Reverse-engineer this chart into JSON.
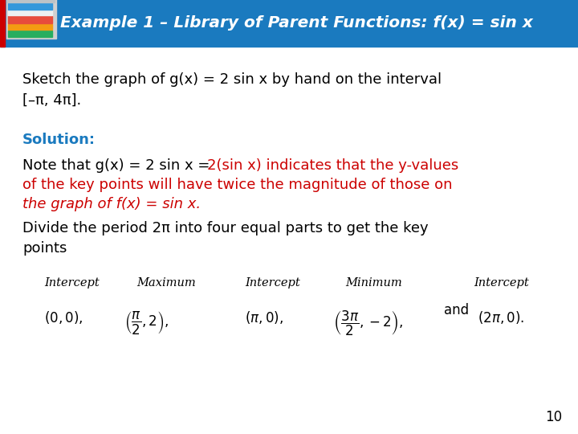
{
  "title": "Example 1 – Library of Parent Functions: f(x) = sin x",
  "title_bg_color": "#1a7abf",
  "title_text_color": "#ffffff",
  "bg_color": "#ffffff",
  "body_text_color": "#000000",
  "red_text_color": "#cc0000",
  "blue_text_color": "#1a7abf",
  "page_number": "10",
  "sketch_line1": "Sketch the graph of g(x) = 2 sin x by hand on the interval",
  "sketch_line2": "[–π, 4π].",
  "solution_label": "Solution:",
  "note_black": "Note that g(x) = 2 sin x = ",
  "note_red_line1": "2(sin x) indicates that the y-values",
  "note_red_line2": "of the key points will have twice the magnitude of those on",
  "note_red_line3": "the graph of f(x) = sin x.",
  "divide_line1": "Divide the period 2π into four equal parts to get the key",
  "divide_line2": "points",
  "table_headers": [
    "Intercept",
    "Maximum",
    "Intercept",
    "Minimum",
    "Intercept"
  ],
  "figsize": [
    7.2,
    5.4
  ],
  "dpi": 100
}
